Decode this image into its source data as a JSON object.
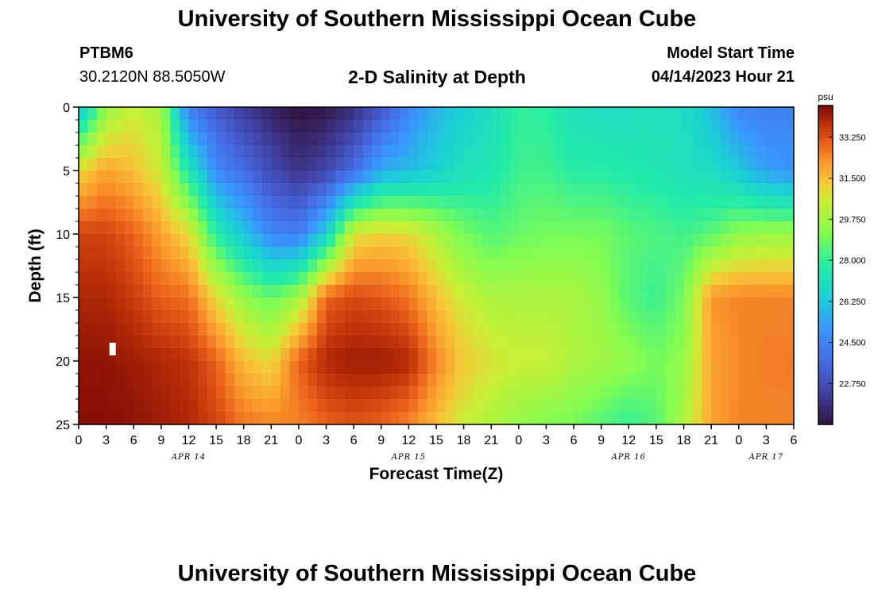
{
  "header": {
    "title": "University of Southern Mississippi Ocean Cube",
    "station_id": "PTBM6",
    "station_coords": "30.2120N  88.5050W",
    "subtitle": "2-D Salinity at Depth",
    "model_start_label": "Model Start Time",
    "model_start_value": "04/14/2023 Hour 21"
  },
  "footer": {
    "title": "University of Southern Mississippi Ocean Cube"
  },
  "chart_data": {
    "type": "heatmap",
    "title": "2-D Salinity at Depth",
    "xlabel": "Forecast Time(Z)",
    "ylabel": "Depth (ft)",
    "x_tick_labels": [
      "0",
      "3",
      "6",
      "9",
      "12",
      "15",
      "18",
      "21",
      "0",
      "3",
      "6",
      "9",
      "12",
      "15",
      "18",
      "21",
      "0",
      "3",
      "6",
      "9",
      "12",
      "15",
      "18",
      "21",
      "0",
      "3",
      "6"
    ],
    "x_date_labels": [
      "APR 14",
      "APR 15",
      "APR 16",
      "APR 17"
    ],
    "x_hours_range": [
      0,
      78
    ],
    "y_ticks": [
      0,
      5,
      10,
      15,
      20,
      25
    ],
    "ylim": [
      0,
      25
    ],
    "y_inverted": true,
    "colorbar": {
      "unit": "psu",
      "ticks": [
        "33.250",
        "31.500",
        "29.750",
        "28.000",
        "26.250",
        "24.500",
        "22.750"
      ],
      "range": [
        21.0,
        34.6
      ],
      "colormap": "turbo"
    },
    "depth_ft": [
      0,
      5,
      10,
      15,
      20,
      25
    ],
    "time_hours": [
      0,
      3,
      6,
      9,
      12,
      15,
      18,
      21,
      24,
      27,
      30,
      33,
      36,
      39,
      42,
      45,
      48,
      51,
      54,
      57,
      60,
      63,
      66,
      69,
      72,
      75,
      78
    ],
    "salinity_psu": [
      [
        25.8,
        29.5,
        30.5,
        29.8,
        24.3,
        23.2,
        22.2,
        21.5,
        21.0,
        21.2,
        21.8,
        23.0,
        24.5,
        25.8,
        26.5,
        27.0,
        28.0,
        27.8,
        27.2,
        27.0,
        27.0,
        27.2,
        27.0,
        26.0,
        24.6,
        24.3,
        24.5
      ],
      [
        31.0,
        32.0,
        31.5,
        30.5,
        27.5,
        24.7,
        23.8,
        22.7,
        22.0,
        22.5,
        23.8,
        25.6,
        26.0,
        26.5,
        27.2,
        27.5,
        28.2,
        28.2,
        27.8,
        27.8,
        27.6,
        27.5,
        27.2,
        27.0,
        26.3,
        25.3,
        25.0
      ],
      [
        33.5,
        33.5,
        33.0,
        32.0,
        31.0,
        27.8,
        26.2,
        24.6,
        24.3,
        26.6,
        30.8,
        31.2,
        31.0,
        30.0,
        29.0,
        28.5,
        28.8,
        29.0,
        29.0,
        29.0,
        28.6,
        28.4,
        28.2,
        28.6,
        29.4,
        29.6,
        29.6
      ],
      [
        34.0,
        34.0,
        33.6,
        33.0,
        32.8,
        31.0,
        29.5,
        28.8,
        29.8,
        33.0,
        33.4,
        33.2,
        32.7,
        31.5,
        30.5,
        30.0,
        30.0,
        30.0,
        30.0,
        29.5,
        28.5,
        28.1,
        29.0,
        32.2,
        32.5,
        32.5,
        32.5
      ],
      [
        34.4,
        34.4,
        34.2,
        34.0,
        33.8,
        33.0,
        31.5,
        31.0,
        33.0,
        34.0,
        34.2,
        34.2,
        34.0,
        32.5,
        31.3,
        30.8,
        30.5,
        30.5,
        30.0,
        29.8,
        29.5,
        29.0,
        29.5,
        32.0,
        32.4,
        32.6,
        32.6
      ],
      [
        34.5,
        34.5,
        34.4,
        34.2,
        34.0,
        33.5,
        32.7,
        32.5,
        32.5,
        33.0,
        33.2,
        33.0,
        32.5,
        31.5,
        30.5,
        30.0,
        29.5,
        29.2,
        29.0,
        28.5,
        28.0,
        28.5,
        30.0,
        32.0,
        32.5,
        32.5,
        32.5
      ]
    ],
    "annotations": [
      {
        "type": "white-marker",
        "hour": 3.7,
        "depth_ft": 19
      }
    ]
  }
}
